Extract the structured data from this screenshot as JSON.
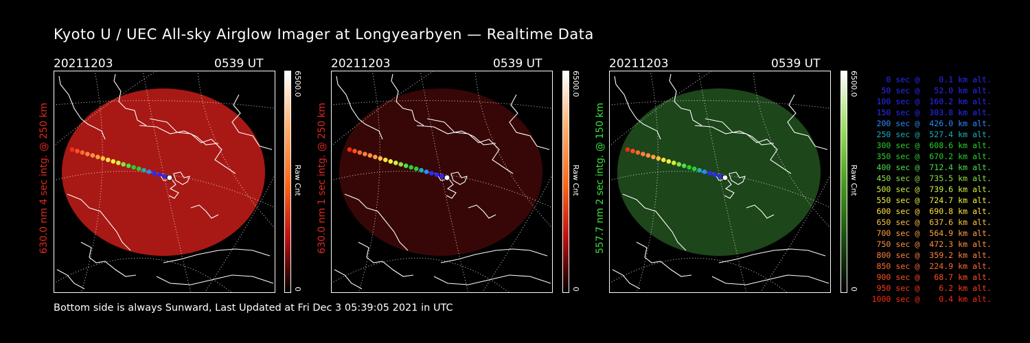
{
  "title": "Kyoto U / UEC All-sky Airglow Imager at Longyearbyen — Realtime Data",
  "footer": "Bottom side is always Sunward, Last Updated at Fri Dec  3 05:39:05 2021 in UTC",
  "panels": [
    {
      "date": "20211203",
      "time": "0539 UT",
      "side_label": "630.0 nm 4 sec intg. @ 250 km",
      "label_color": "#e0281e",
      "emission_color": "#b11a16",
      "emission_opacity": 0.95,
      "cbar_max": "6500.0",
      "cbar_unit": "Raw Cnt",
      "cbar_min": "0",
      "cbar_colors": [
        "#ffffff",
        "#ffb070",
        "#ff6a1a",
        "#c01010",
        "#000000"
      ]
    },
    {
      "date": "20211203",
      "time": "0539 UT",
      "side_label": "630.0 nm 1 sec intg. @ 250 km",
      "label_color": "#e0281e",
      "emission_color": "#3a0707",
      "emission_opacity": 0.95,
      "cbar_max": "6500.0",
      "cbar_unit": "Raw Cnt",
      "cbar_min": "0",
      "cbar_colors": [
        "#ffffff",
        "#ffb070",
        "#ff6a1a",
        "#c01010",
        "#000000"
      ]
    },
    {
      "date": "20211203",
      "time": "0539 UT",
      "side_label": "557.7 nm 2 sec intg. @ 150 km",
      "label_color": "#3ce03c",
      "emission_color": "#1f4a1c",
      "emission_opacity": 0.95,
      "cbar_max": "6500.0",
      "cbar_unit": "Raw Cnt",
      "cbar_min": "0",
      "cbar_colors": [
        "#ffffff",
        "#a0e060",
        "#4aa01a",
        "#1a5010",
        "#000000"
      ]
    }
  ],
  "legend": [
    {
      "text": "   0 sec @    0.1 km alt.",
      "color": "#2a2aff"
    },
    {
      "text": "  50 sec @   52.0 km alt.",
      "color": "#2a2aff"
    },
    {
      "text": " 100 sec @  160.2 km alt.",
      "color": "#2a2aff"
    },
    {
      "text": " 150 sec @  303.8 km alt.",
      "color": "#2a2aff"
    },
    {
      "text": " 200 sec @  426.0 km alt.",
      "color": "#2a8cff"
    },
    {
      "text": " 250 sec @  527.4 km alt.",
      "color": "#1ab0c0"
    },
    {
      "text": " 300 sec @  608.6 km alt.",
      "color": "#2ad02a"
    },
    {
      "text": " 350 sec @  670.2 km alt.",
      "color": "#2ad02a"
    },
    {
      "text": " 400 sec @  712.4 km alt.",
      "color": "#4ae04a"
    },
    {
      "text": " 450 sec @  735.5 km alt.",
      "color": "#8ae04a"
    },
    {
      "text": " 500 sec @  739.6 km alt.",
      "color": "#d0f040"
    },
    {
      "text": " 550 sec @  724.7 km alt.",
      "color": "#f0f040"
    },
    {
      "text": " 600 sec @  690.8 km alt.",
      "color": "#ffe040"
    },
    {
      "text": " 650 sec @  637.6 km alt.",
      "color": "#ffc040"
    },
    {
      "text": " 700 sec @  564.9 km alt.",
      "color": "#ffa040"
    },
    {
      "text": " 750 sec @  472.3 km alt.",
      "color": "#ff9040"
    },
    {
      "text": " 800 sec @  359.2 km alt.",
      "color": "#ff8040"
    },
    {
      "text": " 850 sec @  224.9 km alt.",
      "color": "#ff6a30"
    },
    {
      "text": " 900 sec @   68.7 km alt.",
      "color": "#ff5020"
    },
    {
      "text": " 950 sec @    6.2 km alt.",
      "color": "#ff3a18"
    },
    {
      "text": "1000 sec @    0.4 km alt.",
      "color": "#ff2a10"
    }
  ],
  "track_colors": [
    "#ff2a10",
    "#ff5020",
    "#ff6a30",
    "#ff8040",
    "#ff9040",
    "#ffa040",
    "#ffc040",
    "#ffe040",
    "#f0f040",
    "#d0f040",
    "#8ae04a",
    "#4ae04a",
    "#2ad02a",
    "#2ad02a",
    "#1ab0c0",
    "#2a8cff",
    "#2a2aff",
    "#2a2aff",
    "#2a2aff",
    "#ffffff"
  ]
}
